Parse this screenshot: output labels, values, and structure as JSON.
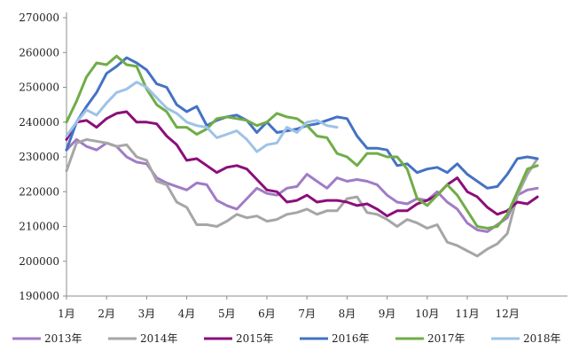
{
  "chart_data": {
    "type": "line",
    "title": "",
    "xlabel": "",
    "ylabel": "",
    "ylim": [
      190000,
      270000
    ],
    "yticks": [
      190000,
      200000,
      210000,
      220000,
      230000,
      240000,
      250000,
      260000,
      270000
    ],
    "ytick_labels": [
      "190000",
      "200000",
      "210000",
      "220000",
      "230000",
      "240000",
      "250000",
      "260000",
      "270000"
    ],
    "x_months": [
      "1月",
      "2月",
      "3月",
      "4月",
      "5月",
      "6月",
      "7月",
      "8月",
      "9月",
      "10月",
      "11月",
      "12月"
    ],
    "grid": false,
    "legend_position": "bottom",
    "series": [
      {
        "name": "2013年",
        "color": "#a07cc5",
        "x": [
          1,
          1.25,
          1.5,
          1.75,
          2,
          2.25,
          2.5,
          2.75,
          3,
          3.25,
          3.5,
          3.75,
          4,
          4.25,
          4.5,
          4.75,
          5,
          5.25,
          5.5,
          5.75,
          6,
          6.25,
          6.5,
          6.75,
          7,
          7.25,
          7.5,
          7.75,
          8,
          8.25,
          8.5,
          8.75,
          9,
          9.25,
          9.5,
          9.75,
          10,
          10.25,
          10.5,
          10.75,
          11,
          11.25,
          11.5,
          11.75,
          12,
          12.25,
          12.5,
          12.75
        ],
        "values": [
          232000,
          235000,
          233000,
          232000,
          234000,
          233000,
          230000,
          228500,
          228000,
          224000,
          222500,
          221500,
          220500,
          222500,
          222000,
          217500,
          216000,
          215000,
          218000,
          221000,
          219500,
          219000,
          221000,
          221500,
          225000,
          223000,
          221000,
          224000,
          223000,
          223500,
          223000,
          222000,
          219000,
          217000,
          216500,
          218000,
          217500,
          220000,
          217000,
          215000,
          211000,
          209000,
          208500,
          210500,
          212500,
          219000,
          220500,
          221000
        ]
      },
      {
        "name": "2014年",
        "color": "#a6a6a6",
        "x": [
          1,
          1.25,
          1.5,
          1.75,
          2,
          2.25,
          2.5,
          2.75,
          3,
          3.25,
          3.5,
          3.75,
          4,
          4.25,
          4.5,
          4.75,
          5,
          5.25,
          5.5,
          5.75,
          6,
          6.25,
          6.5,
          6.75,
          7,
          7.25,
          7.5,
          7.75,
          8,
          8.25,
          8.5,
          8.75,
          9,
          9.25,
          9.5,
          9.75,
          10,
          10.25,
          10.5,
          10.75,
          11,
          11.25,
          11.5,
          11.75,
          12,
          12.25,
          12.5,
          12.75
        ],
        "values": [
          226000,
          234000,
          235000,
          234500,
          234000,
          233000,
          233500,
          230000,
          229000,
          223000,
          222000,
          217000,
          215500,
          210500,
          210500,
          210000,
          211500,
          213500,
          212500,
          213000,
          211500,
          212000,
          213500,
          214000,
          215000,
          213500,
          214500,
          214500,
          218000,
          218500,
          214000,
          213500,
          212000,
          210000,
          212000,
          211000,
          209500,
          210500,
          205500,
          204500,
          203000,
          201500,
          203500,
          205000,
          208000,
          219000,
          225000,
          229500
        ]
      },
      {
        "name": "2015年",
        "color": "#8b0f7a",
        "x": [
          1,
          1.25,
          1.5,
          1.75,
          2,
          2.25,
          2.5,
          2.75,
          3,
          3.25,
          3.5,
          3.75,
          4,
          4.25,
          4.5,
          4.75,
          5,
          5.25,
          5.5,
          5.75,
          6,
          6.25,
          6.5,
          6.75,
          7,
          7.25,
          7.5,
          7.75,
          8,
          8.25,
          8.5,
          8.75,
          9,
          9.25,
          9.5,
          9.75,
          10,
          10.25,
          10.5,
          10.75,
          11,
          11.25,
          11.5,
          11.75,
          12,
          12.25,
          12.5,
          12.75
        ],
        "values": [
          235000,
          240000,
          240500,
          238500,
          241000,
          242500,
          243000,
          240000,
          240000,
          239500,
          236000,
          233500,
          229000,
          229500,
          227500,
          225500,
          227000,
          227500,
          226500,
          223500,
          220500,
          220000,
          217000,
          217500,
          219000,
          217000,
          217500,
          217500,
          217000,
          216000,
          216500,
          215000,
          213000,
          214500,
          214500,
          216500,
          217500,
          219000,
          222000,
          224000,
          220000,
          218500,
          215500,
          213500,
          214500,
          217000,
          216500,
          218500
        ]
      },
      {
        "name": "2016年",
        "color": "#4472c4",
        "x": [
          1,
          1.25,
          1.5,
          1.75,
          2,
          2.25,
          2.5,
          2.75,
          3,
          3.25,
          3.5,
          3.75,
          4,
          4.25,
          4.5,
          4.75,
          5,
          5.25,
          5.5,
          5.75,
          6,
          6.25,
          6.5,
          6.75,
          7,
          7.25,
          7.5,
          7.75,
          8,
          8.25,
          8.5,
          8.75,
          9,
          9.25,
          9.5,
          9.75,
          10,
          10.25,
          10.5,
          10.75,
          11,
          11.25,
          11.5,
          11.75,
          12,
          12.25,
          12.5,
          12.75
        ],
        "values": [
          232000,
          240000,
          244500,
          248500,
          254000,
          256000,
          258500,
          257000,
          255000,
          251000,
          250000,
          245000,
          243000,
          244500,
          239000,
          240500,
          241500,
          242000,
          240500,
          237000,
          240000,
          237000,
          237500,
          238000,
          239000,
          239500,
          240500,
          241500,
          241000,
          236000,
          232500,
          232500,
          232000,
          227500,
          228000,
          225500,
          226500,
          227000,
          225500,
          228000,
          225000,
          223000,
          221000,
          221500,
          225000,
          229500,
          230000,
          229500
        ]
      },
      {
        "name": "2017年",
        "color": "#70ad47",
        "x": [
          1,
          1.25,
          1.5,
          1.75,
          2,
          2.25,
          2.5,
          2.75,
          3,
          3.25,
          3.5,
          3.75,
          4,
          4.25,
          4.5,
          4.75,
          5,
          5.25,
          5.5,
          5.75,
          6,
          6.25,
          6.5,
          6.75,
          7,
          7.25,
          7.5,
          7.75,
          8,
          8.25,
          8.5,
          8.75,
          9,
          9.25,
          9.5,
          9.75,
          10,
          10.25,
          10.5,
          10.75,
          11,
          11.25,
          11.5,
          11.75,
          12,
          12.25,
          12.5,
          12.75
        ],
        "values": [
          240000,
          246000,
          253000,
          257000,
          256500,
          259000,
          256500,
          256000,
          249500,
          245000,
          243000,
          238500,
          238500,
          236500,
          238000,
          241000,
          241500,
          241000,
          240500,
          239000,
          240000,
          242500,
          241500,
          241000,
          239000,
          236000,
          235500,
          231000,
          230000,
          227500,
          231000,
          231000,
          230000,
          230000,
          226500,
          218000,
          216000,
          219000,
          222000,
          219000,
          214500,
          210000,
          209500,
          210000,
          213500,
          220000,
          226500,
          227500
        ]
      },
      {
        "name": "2018年",
        "color": "#9dc3e6",
        "x": [
          1,
          1.25,
          1.5,
          1.75,
          2,
          2.25,
          2.5,
          2.75,
          3,
          3.25,
          3.5,
          3.75,
          4,
          4.25,
          4.5,
          4.75,
          5,
          5.25,
          5.5,
          5.75,
          6,
          6.25,
          6.5,
          6.75,
          7,
          7.25,
          7.5,
          7.75
        ],
        "values": [
          236000,
          240000,
          243500,
          242000,
          245500,
          248500,
          249500,
          251500,
          250000,
          247000,
          244000,
          242500,
          240000,
          239000,
          238500,
          235500,
          236500,
          237500,
          235000,
          231500,
          233500,
          234000,
          238500,
          237000,
          240000,
          240500,
          239000,
          238500
        ]
      }
    ]
  }
}
